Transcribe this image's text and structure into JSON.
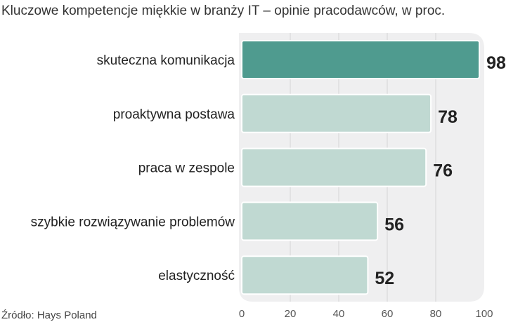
{
  "chart_data": {
    "type": "bar",
    "orientation": "horizontal",
    "title": "Kluczowe kompetencje miękkie w branży IT – opinie pracodawców, w proc.",
    "categories": [
      "skuteczna komunikacja",
      "proaktywna postawa",
      "praca w zespole",
      "szybkie rozwiązywanie problemów",
      "elastyczność"
    ],
    "values": [
      98,
      78,
      76,
      56,
      52
    ],
    "highlight_index": 0,
    "xlim": [
      0,
      100
    ],
    "xticks": [
      "0",
      "20",
      "40",
      "60",
      "80",
      "100"
    ],
    "grid": true,
    "source": "Źródło: Hays Poland",
    "colors": {
      "highlight": "#4f9b8f",
      "bar": "#c0d9d2",
      "panel": "#efeff0",
      "grid": "#d4d4d6"
    }
  }
}
